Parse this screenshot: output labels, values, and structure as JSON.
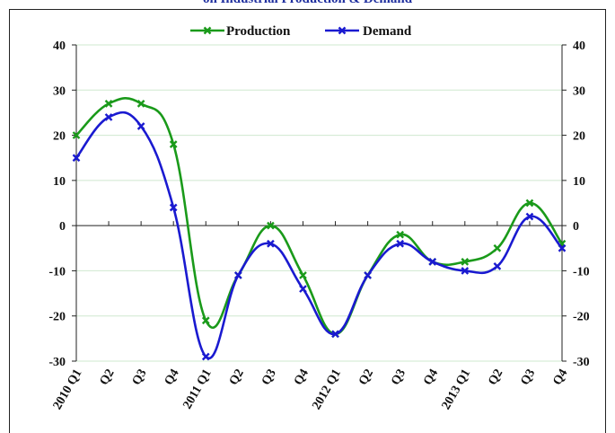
{
  "chart_data": {
    "type": "line",
    "title": "on Industrial Production & Demand",
    "categories": [
      "2010 Q1",
      "Q2",
      "Q3",
      "Q4",
      "2011 Q1",
      "Q2",
      "Q3",
      "Q4",
      "2012 Q1",
      "Q2",
      "Q3",
      "Q4",
      "2013 Q1",
      "Q2",
      "Q3",
      "Q4"
    ],
    "series": [
      {
        "name": "Production",
        "color": "#1a9a1a",
        "values": [
          20,
          27,
          27,
          18,
          -21,
          -11,
          0,
          -11,
          -24,
          -11,
          -2,
          -8,
          -8,
          -5,
          5,
          -4
        ]
      },
      {
        "name": "Demand",
        "color": "#1a1ad0",
        "values": [
          15,
          24,
          22,
          4,
          -29,
          -11,
          -4,
          -14,
          -24,
          -11,
          -4,
          -8,
          -10,
          -9,
          2,
          -5
        ]
      }
    ],
    "ylim": [
      -30,
      40
    ],
    "yticks": [
      -30,
      -20,
      -10,
      0,
      10,
      20,
      30,
      40
    ],
    "ytick_labels": [
      "-30",
      "-20",
      "-10",
      "0",
      "10",
      "20",
      "30",
      "40"
    ],
    "grid": true,
    "legend": "top-center",
    "xlabel": "",
    "ylabel": ""
  }
}
